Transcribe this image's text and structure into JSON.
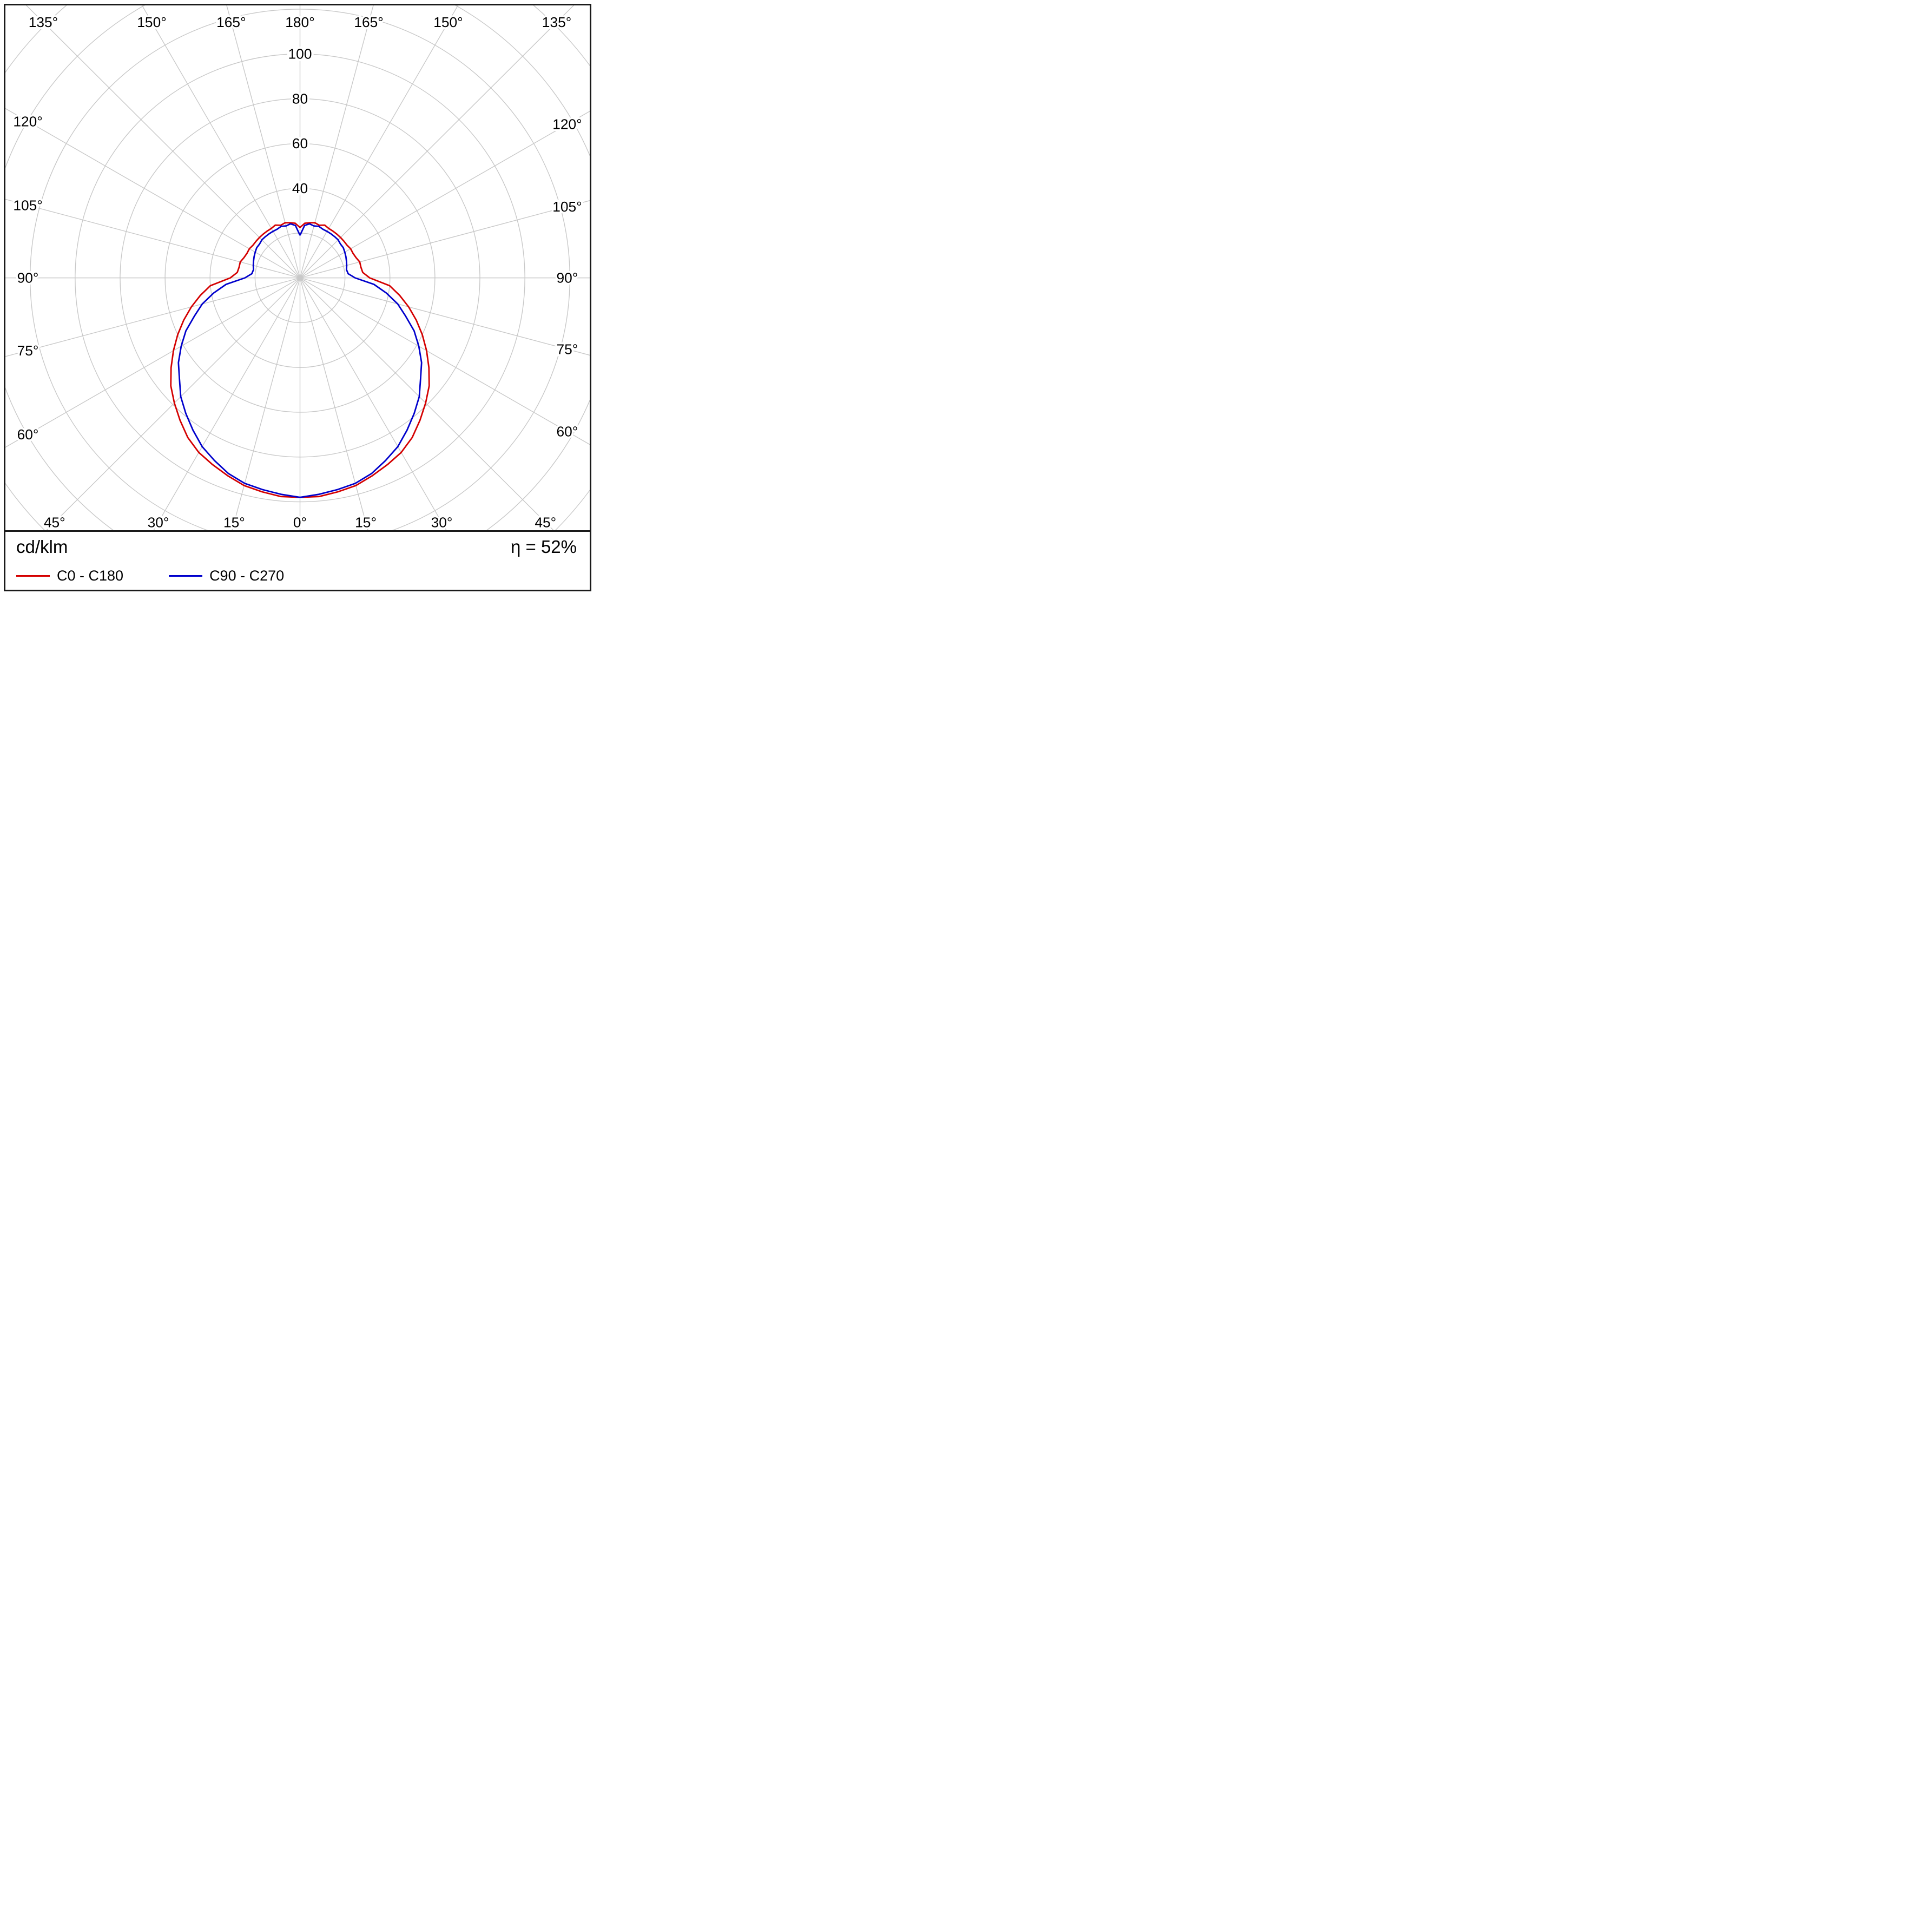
{
  "figure": {
    "unit_label": "cd/klm",
    "efficiency_label": "η = 52%"
  },
  "legend": {
    "entries": [
      {
        "label": "C0 - C180",
        "color": "#d40000"
      },
      {
        "label": "C90 - C270",
        "color": "#0000cc"
      }
    ]
  },
  "chart_data": {
    "type": "line",
    "subtype": "polar-luminous-intensity-distribution",
    "units": "cd/klm",
    "efficiency": "η = 52%",
    "grid": true,
    "legend_position": "bottom-left",
    "angle_tick_step_deg": 15,
    "angle_labels_deg": [
      0,
      15,
      30,
      45,
      60,
      75,
      90,
      105,
      120,
      135,
      150,
      165,
      180
    ],
    "radial_rings": [
      20,
      40,
      60,
      80,
      100,
      120,
      140,
      160,
      180
    ],
    "radial_ring_labels": [
      40,
      60,
      80,
      100
    ],
    "rmax_labeled": 100,
    "gamma_deg": [
      0,
      5,
      10,
      15,
      20,
      25,
      30,
      35,
      40,
      45,
      50,
      55,
      60,
      65,
      70,
      75,
      80,
      85,
      90,
      95,
      100,
      105,
      110,
      115,
      120,
      125,
      130,
      135,
      140,
      145,
      150,
      155,
      160,
      165,
      170,
      175,
      180
    ],
    "series": [
      {
        "name": "C0 - C180",
        "color": "#d40000",
        "values": [
          98,
          98,
          97,
          96,
          94,
          92,
          90,
          87,
          83,
          79,
          75,
          70,
          65,
          60,
          55,
          50,
          45,
          40,
          31,
          28,
          27.5,
          27.5,
          26.5,
          26,
          26,
          25.5,
          25.5,
          25.5,
          25.5,
          25.5,
          25.5,
          26,
          25,
          25.5,
          25,
          24.5,
          22.5
        ]
      },
      {
        "name": "C90 - C270",
        "color": "#0000cc",
        "values": [
          98,
          97,
          96,
          95,
          93,
          90,
          87,
          83,
          79,
          75,
          70,
          66,
          61,
          56,
          50,
          45,
          39,
          33,
          24.5,
          21.5,
          21,
          21.5,
          22,
          22.5,
          23,
          23.5,
          23.5,
          24,
          24,
          24,
          24,
          24,
          24.5,
          24,
          24.5,
          23.5,
          19
        ]
      }
    ]
  }
}
